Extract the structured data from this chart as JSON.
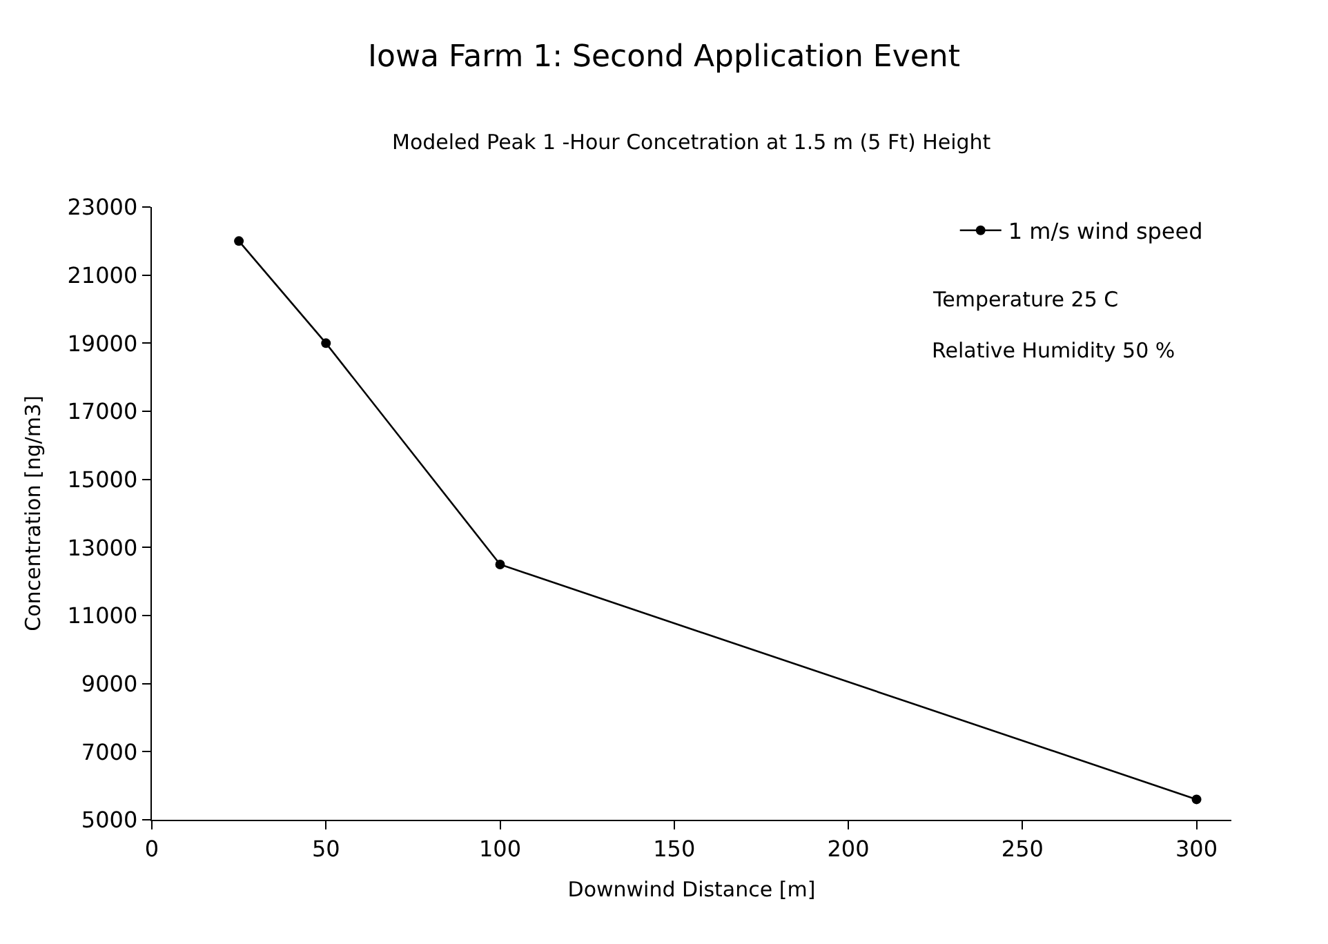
{
  "chart_data": {
    "type": "line",
    "title": "Iowa Farm 1: Second Application Event",
    "subtitle": "Modeled Peak 1 -Hour Concetration at 1.5 m (5 Ft) Height",
    "xlabel": "Downwind Distance [m]",
    "ylabel": "Concentration [ng/m3]",
    "x": [
      25,
      50,
      100,
      300
    ],
    "series": [
      {
        "name": "1 m/s wind speed",
        "color": "#000000",
        "values": [
          22000,
          19000,
          12500,
          5600
        ]
      }
    ],
    "xlim": [
      0,
      310
    ],
    "xticks": [
      0,
      50,
      100,
      150,
      200,
      250,
      300
    ],
    "ylim": [
      5000,
      23000
    ],
    "yticks": [
      5000,
      7000,
      9000,
      11000,
      13000,
      15000,
      17000,
      19000,
      21000,
      23000
    ],
    "annotations": [
      "Temperature 25 C",
      "Relative Humidity 50 %"
    ],
    "grid": false,
    "legend": "top right",
    "marker": "circle",
    "line_style": "solid"
  }
}
